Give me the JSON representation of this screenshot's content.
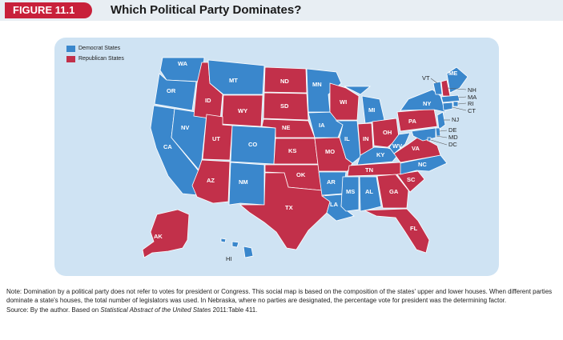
{
  "figure": {
    "number": "FIGURE 11.1",
    "title": "Which Political Party Dominates?"
  },
  "legend": [
    {
      "label": "Democrat States",
      "color": "#3a87cc"
    },
    {
      "label": "Republican States",
      "color": "#c2304a"
    }
  ],
  "colors": {
    "democrat": "#3a87cc",
    "republican": "#c2304a",
    "map_background": "#cfe3f3",
    "figure_tab": "#c8203a"
  },
  "states": {
    "WA": "D",
    "OR": "D",
    "CA": "D",
    "NV": "D",
    "ID": "R",
    "MT": "D",
    "WY": "R",
    "UT": "R",
    "AZ": "R",
    "CO": "D",
    "NM": "D",
    "ND": "R",
    "SD": "R",
    "NE": "R",
    "KS": "R",
    "OK": "R",
    "TX": "R",
    "MN": "D",
    "IA": "D",
    "MO": "R",
    "AR": "D",
    "LA": "D",
    "WI": "R",
    "IL": "D",
    "MI": "D",
    "IN": "R",
    "OH": "R",
    "KY": "D",
    "TN": "R",
    "MS": "D",
    "AL": "D",
    "GA": "R",
    "FL": "R",
    "SC": "R",
    "NC": "D",
    "VA": "R",
    "WV": "D",
    "PA": "R",
    "NY": "D",
    "VT": "D",
    "ME": "D",
    "NH": "R",
    "MA": "D",
    "RI": "D",
    "CT": "D",
    "NJ": "D",
    "DE": "D",
    "MD": "D",
    "DC": "D",
    "AK": "R",
    "HI": "D"
  },
  "notes": {
    "note": "Note: Domination by a political party does not refer to votes for president or Congress. This social map is based on the composition of the states' upper and lower houses. When different parties dominate a state's houses, the total number of legislators was used. In Nebraska, where no parties are designated, the percentage vote for president was the determining factor.",
    "source_prefix": "Source: By the author. Based on ",
    "source_title": "Statistical Abstract of the United States",
    "source_suffix": " 2011:Table 411."
  }
}
